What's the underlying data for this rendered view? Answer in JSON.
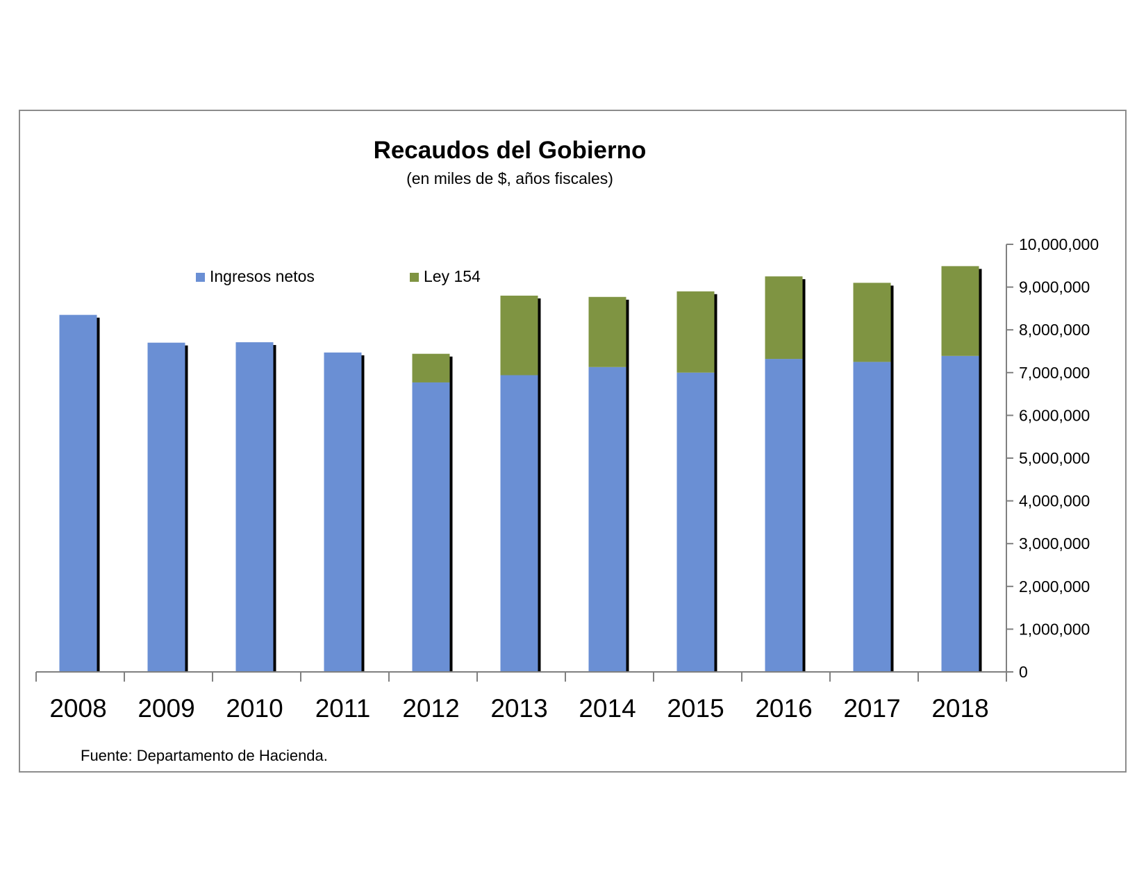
{
  "chart_data": {
    "type": "bar",
    "stacked": true,
    "title": "Recaudos del Gobierno",
    "subtitle": "(en miles de $, años fiscales)",
    "source_note": "Fuente: Departamento de Hacienda.",
    "categories": [
      "2008",
      "2009",
      "2010",
      "2011",
      "2012",
      "2013",
      "2014",
      "2015",
      "2016",
      "2017",
      "2018"
    ],
    "series": [
      {
        "name": "Ingresos netos",
        "color": "#6a8fd4",
        "values": [
          8350000,
          7700000,
          7710000,
          7470000,
          6770000,
          6940000,
          7130000,
          7000000,
          7320000,
          7250000,
          7390000
        ]
      },
      {
        "name": "Ley 154",
        "color": "#7f9442",
        "values": [
          0,
          0,
          0,
          0,
          670000,
          1860000,
          1640000,
          1900000,
          1930000,
          1850000,
          2100000
        ]
      }
    ],
    "ylim": [
      0,
      10000000
    ],
    "yticks": [
      0,
      1000000,
      2000000,
      3000000,
      4000000,
      5000000,
      6000000,
      7000000,
      8000000,
      9000000,
      10000000
    ],
    "ytick_labels": [
      "0",
      "1,000,000",
      "2,000,000",
      "3,000,000",
      "4,000,000",
      "5,000,000",
      "6,000,000",
      "7,000,000",
      "8,000,000",
      "9,000,000",
      "10,000,000"
    ],
    "yaxis_side": "right",
    "grid": false,
    "legend_position": "top-left"
  }
}
